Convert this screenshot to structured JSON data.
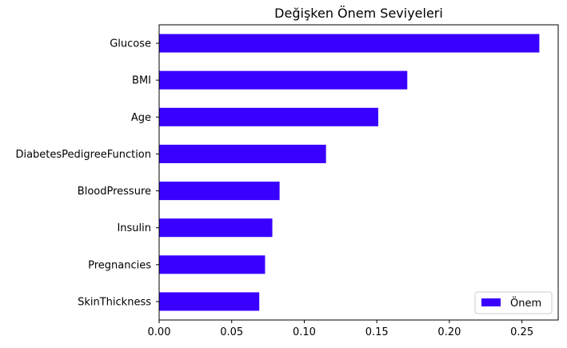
{
  "chart_data": {
    "type": "bar",
    "orientation": "horizontal",
    "title": "Değişken Önem Seviyeleri",
    "xlabel": "",
    "ylabel": "",
    "categories": [
      "Glucose",
      "BMI",
      "Age",
      "DiabetesPedigreeFunction",
      "BloodPressure",
      "Insulin",
      "Pregnancies",
      "SkinThickness"
    ],
    "series": [
      {
        "name": "Önem",
        "color": "#3a00ff",
        "values": [
          0.262,
          0.171,
          0.151,
          0.115,
          0.083,
          0.078,
          0.073,
          0.069
        ]
      }
    ],
    "xlim": [
      0,
      0.275
    ],
    "xticks": [
      0.0,
      0.05,
      0.1,
      0.15,
      0.2,
      0.25
    ],
    "xtick_labels": [
      "0.00",
      "0.05",
      "0.10",
      "0.15",
      "0.20",
      "0.25"
    ],
    "grid": false,
    "legend": {
      "placement": "bottom-right",
      "entries": [
        "Önem"
      ]
    }
  }
}
